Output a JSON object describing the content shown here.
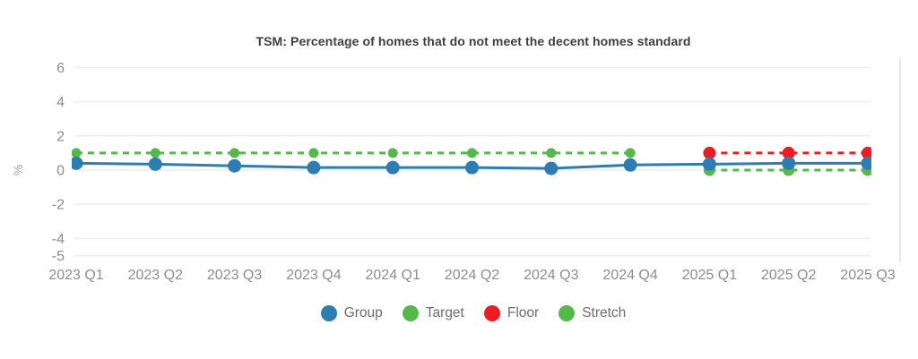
{
  "page": {
    "background": "#ffffff"
  },
  "y_axis": {
    "label": "%",
    "ticks": [
      6,
      4,
      2,
      0,
      -2,
      -4,
      -5
    ]
  },
  "chart_data": {
    "type": "line",
    "title": "TSM: Percentage of homes that do not meet the decent homes standard",
    "xlabel": "",
    "ylabel": "%",
    "ylim": [
      -5,
      6
    ],
    "y_ticks": [
      6,
      4,
      2,
      0,
      -2,
      -4,
      -5
    ],
    "grid": "horizontal",
    "legend_position": "bottom",
    "categories": [
      "2023 Q1",
      "2023 Q2",
      "2023 Q3",
      "2023 Q4",
      "2024 Q1",
      "2024 Q2",
      "2024 Q3",
      "2024 Q4",
      "2025 Q1",
      "2025 Q2",
      "2025 Q3"
    ],
    "series": [
      {
        "name": "Group",
        "color": "#2e7db2",
        "line_style": "solid",
        "values": [
          0.4,
          0.35,
          0.25,
          0.15,
          0.15,
          0.15,
          0.1,
          0.3,
          0.35,
          0.4,
          0.4
        ]
      },
      {
        "name": "Target",
        "color": "#54b84a",
        "line_style": "dashed",
        "values": [
          1,
          1,
          1,
          1,
          1,
          1,
          1,
          1,
          null,
          null,
          null
        ]
      },
      {
        "name": "Floor",
        "color": "#ee1b23",
        "line_style": "dashed",
        "values": [
          null,
          null,
          null,
          null,
          null,
          null,
          null,
          null,
          1,
          1,
          1
        ]
      },
      {
        "name": "Stretch",
        "color": "#54b84a",
        "line_style": "dashed",
        "values": [
          null,
          null,
          null,
          null,
          null,
          null,
          null,
          null,
          0,
          0,
          0
        ]
      }
    ]
  },
  "colors": {
    "grid": "#ededed",
    "plot_border": "#e9e9e9",
    "tick_label": "#8d8d8d",
    "axis_title": "#9e9e9e",
    "title": "#3e3e3e",
    "legend_text": "#6d6d6d"
  }
}
